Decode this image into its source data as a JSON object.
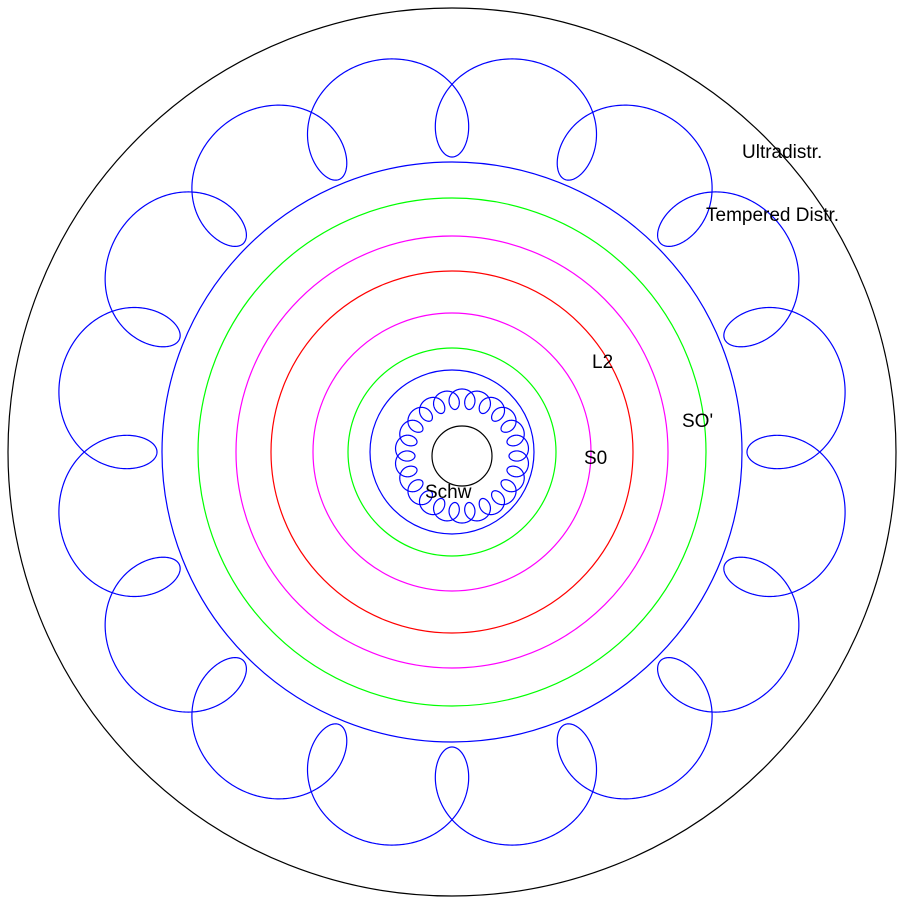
{
  "labels": {
    "ultradistr": "Ultradistr.",
    "tempered": "Tempered Distr.",
    "l2": "L2",
    "so_prime": "SO'",
    "s0": "S0",
    "schw": "Schw"
  },
  "colors": {
    "outer_boundary": "#000000",
    "ultradistr": "#0000ff",
    "tempered": "#0000ff",
    "so_prime": "#00ff00",
    "l2_neighbors": "#ff00ff",
    "l2": "#ff0000",
    "s0": "#00ff00",
    "schw_loops": "#0000ff",
    "schw_boundary": "#0000ff",
    "schw_core": "#000000"
  }
}
